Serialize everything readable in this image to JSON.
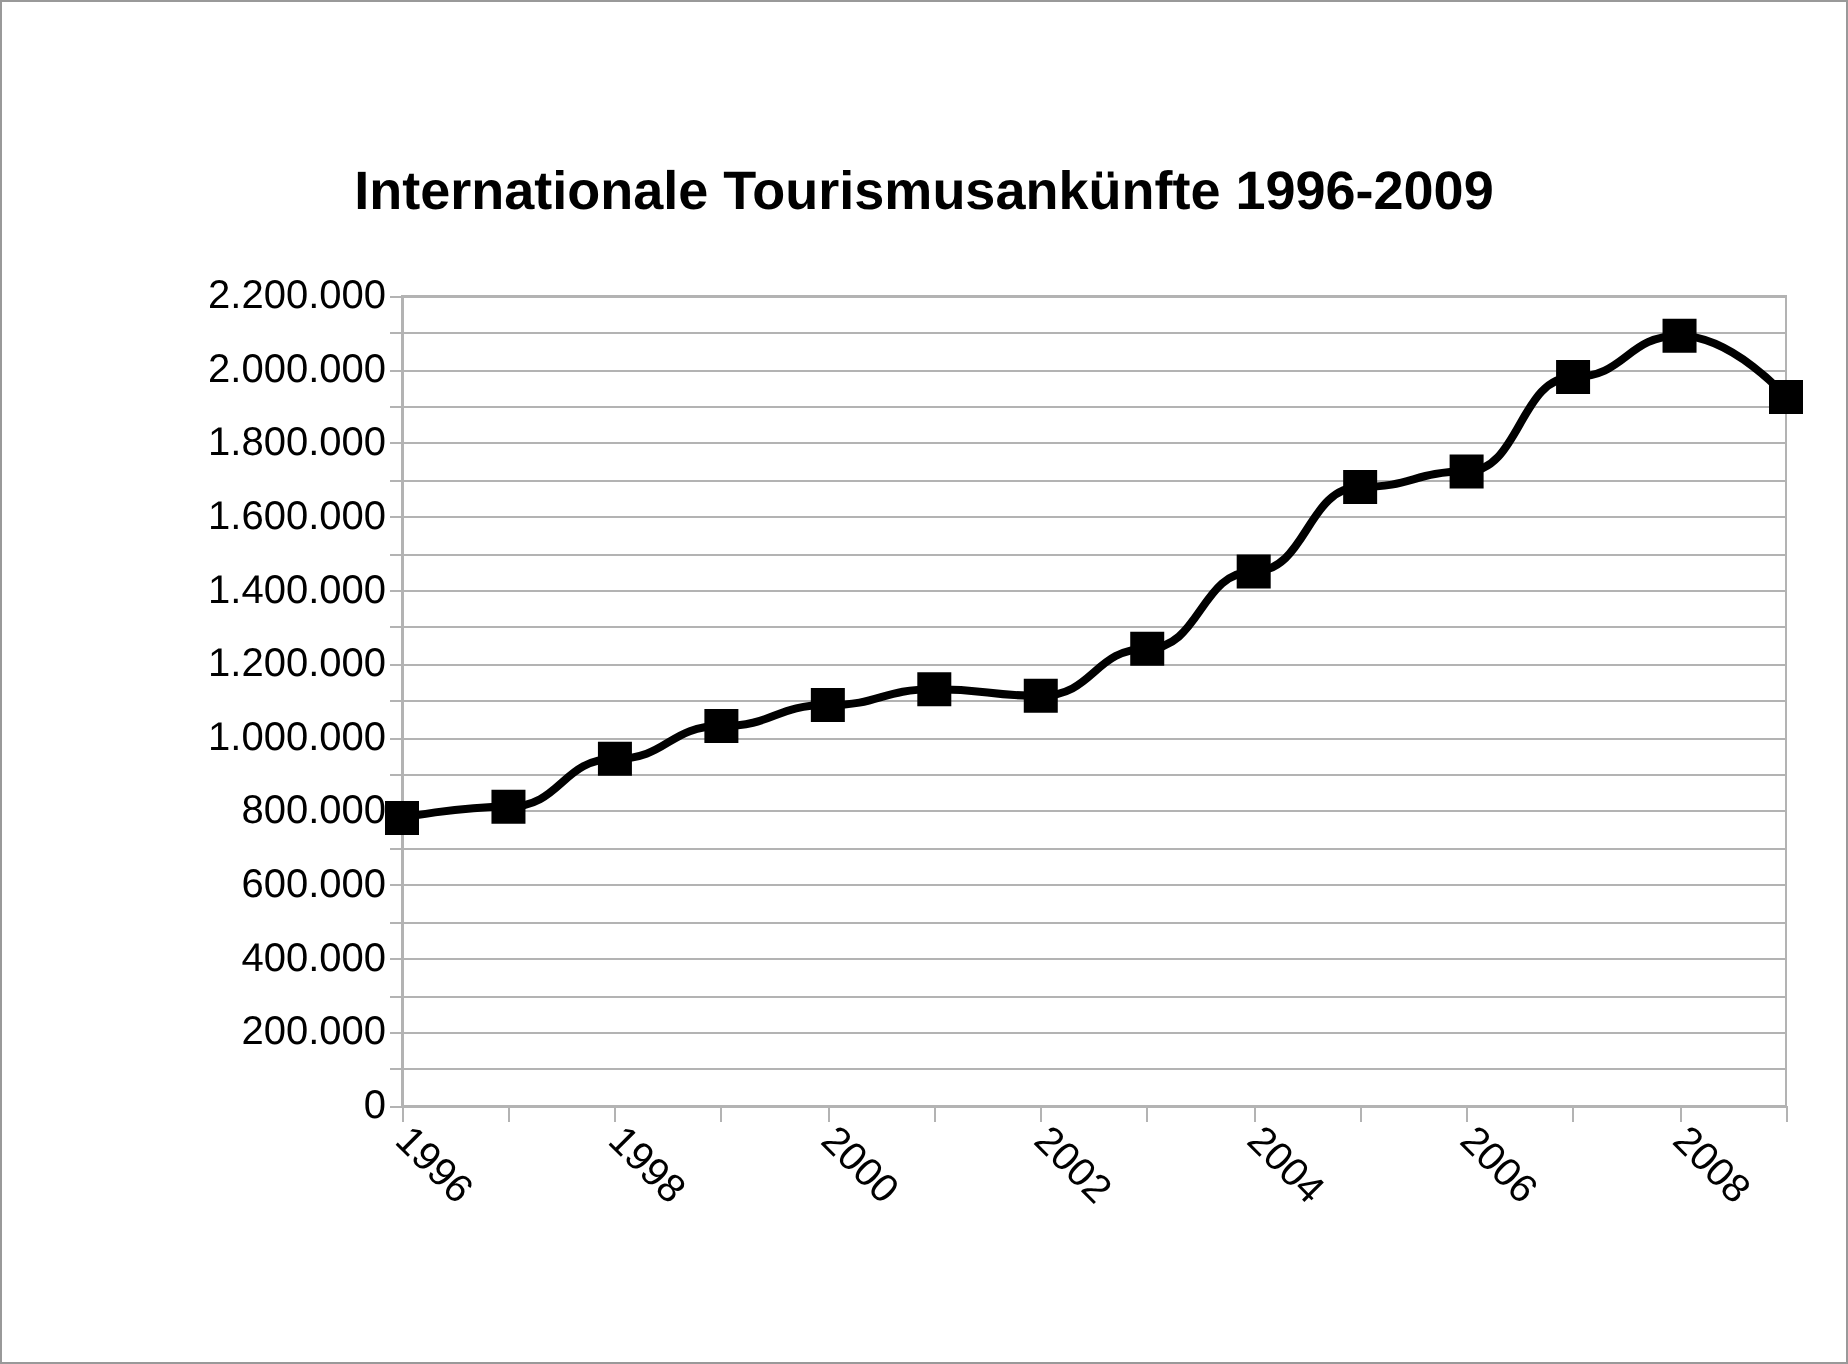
{
  "chart_data": {
    "type": "line",
    "title": "Internationale Tourismusankünfte 1996-2009",
    "categories": [
      "1996",
      null,
      "1998",
      null,
      "2000",
      null,
      "2002",
      null,
      "2004",
      null,
      "2006",
      null,
      "2008",
      null
    ],
    "series": [
      {
        "color": "#000000",
        "values": [
          782000,
          813000,
          943000,
          1032000,
          1089000,
          1132000,
          1114000,
          1242000,
          1452000,
          1681000,
          1723000,
          1980000,
          2092000,
          1926000
        ]
      }
    ],
    "ylim": [
      0,
      2200000
    ],
    "yticks": [
      0,
      {
        "value": 100000,
        "label": null
      },
      "200.000",
      {
        "value": 300000,
        "label": null
      },
      {
        "value": 400000,
        "label": "400.000"
      },
      {
        "value": 500000,
        "label": null
      },
      {
        "value": 600000,
        "label": "600.000"
      },
      {
        "value": 700000,
        "label": null
      },
      {
        "value": 800000,
        "label": "800.000"
      },
      {
        "value": 900000,
        "label": null
      },
      {
        "value": 1000000,
        "label": "1.000.000"
      },
      {
        "value": 1100000,
        "label": null
      },
      {
        "value": 1200000,
        "label": "1.200.000"
      },
      {
        "value": 1300000,
        "label": null
      },
      {
        "value": 1400000,
        "label": "1.400.000"
      },
      {
        "value": 1500000,
        "label": null
      },
      {
        "value": 1600000,
        "label": "1.600.000"
      },
      {
        "value": 1700000,
        "label": null
      },
      {
        "value": 1800000,
        "label": "1.800.000"
      },
      {
        "value": 1900000,
        "label": null
      },
      {
        "value": 2000000,
        "label": "2.000.000"
      },
      {
        "value": 2100000,
        "label": null
      },
      {
        "value": 2200000,
        "label": "2.200.000"
      }
    ],
    "grid": "y",
    "marker": "square",
    "line_style": "solid"
  }
}
